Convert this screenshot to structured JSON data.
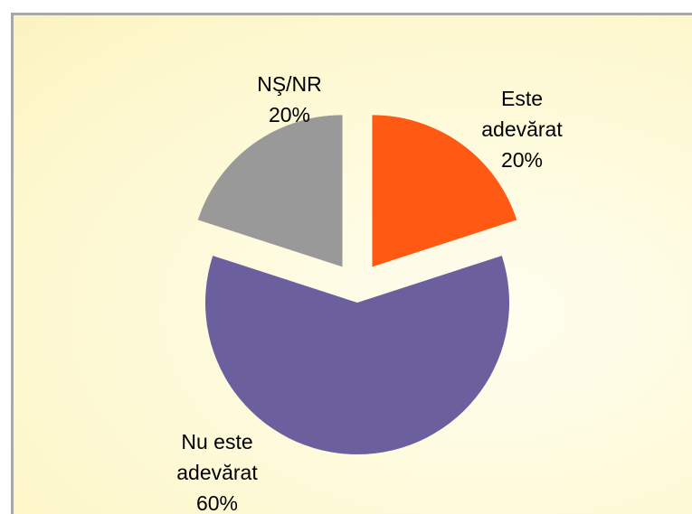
{
  "chart_data": {
    "type": "pie",
    "categories": [
      "Este adevărat",
      "Nu este adevărat",
      "NŞ/NR"
    ],
    "values": [
      20,
      60,
      20
    ],
    "value_labels": [
      "20%",
      "60%",
      "20%"
    ],
    "colors": [
      "#ff5a14",
      "#6b5f9e",
      "#999999"
    ]
  }
}
